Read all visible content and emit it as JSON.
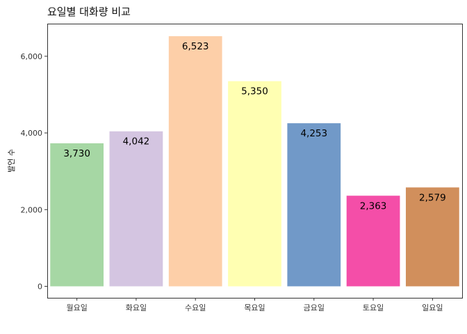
{
  "chart_data": {
    "type": "bar",
    "title": "요일별 대화량 비교",
    "xlabel": "",
    "ylabel": "발언 수",
    "categories": [
      "월요일",
      "화요일",
      "수요일",
      "목요일",
      "금요일",
      "토요일",
      "일요일"
    ],
    "values": [
      3730,
      4042,
      6523,
      5350,
      4253,
      2363,
      2579
    ],
    "value_labels": [
      "3,730",
      "4,042",
      "6,523",
      "5,350",
      "4,253",
      "2,363",
      "2,579"
    ],
    "colors": [
      "#A6D7A4",
      "#D4C5E1",
      "#FDCFA8",
      "#FFFFB2",
      "#7199C8",
      "#F44EA8",
      "#D18F5C"
    ],
    "ylim": [
      -300,
      6850
    ],
    "yticks": [
      0,
      2000,
      4000,
      6000
    ],
    "ytick_labels": [
      "0",
      "2,000",
      "4,000",
      "6,000"
    ],
    "grid": false,
    "legend": "none"
  }
}
